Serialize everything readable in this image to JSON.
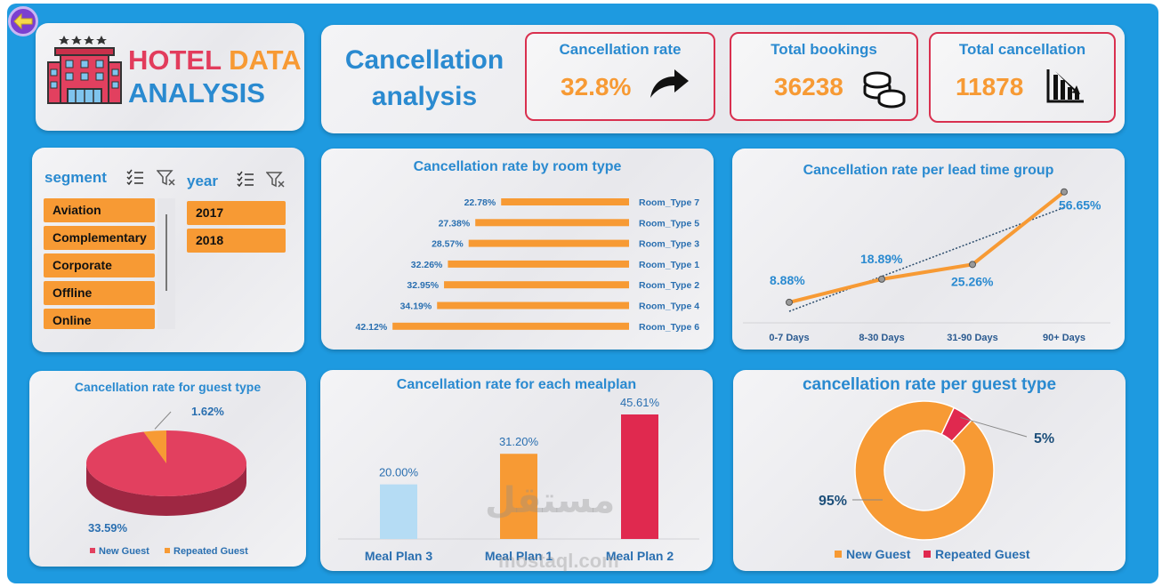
{
  "header": {
    "title_part1": "HOTEL",
    "title_part2": "DATA",
    "title_line2": "ANALYSIS",
    "section_title": "Cancellation analysis"
  },
  "kpis": [
    {
      "label": "Cancellation rate",
      "value": "32.8%",
      "icon": "arrow-turn-right-icon"
    },
    {
      "label": "Total bookings",
      "value": "36238",
      "icon": "coins-icon"
    },
    {
      "label": "Total cancellation",
      "value": "11878",
      "icon": "bar-chart-decrease-icon"
    }
  ],
  "slicers": {
    "segment": {
      "title": "segment",
      "items": [
        "Aviation",
        "Complementary",
        "Corporate",
        "Offline",
        "Online"
      ]
    },
    "year": {
      "title": "year",
      "items": [
        "2017",
        "2018"
      ]
    }
  },
  "colors": {
    "frame": "#1e9ae0",
    "orange": "#f79a34",
    "red": "#d9304f",
    "blue_text": "#2a8ad0",
    "light_blue": "#b5dcf4"
  },
  "chart_data": [
    {
      "id": "room_type",
      "type": "bar",
      "orientation": "horizontal",
      "title": "Cancellation rate by room type",
      "categories": [
        "Room_Type 7",
        "Room_Type 5",
        "Room_Type 3",
        "Room_Type 1",
        "Room_Type 2",
        "Room_Type 4",
        "Room_Type 6"
      ],
      "values": [
        22.78,
        27.38,
        28.57,
        32.26,
        32.95,
        34.19,
        42.12
      ],
      "labels": [
        "22.78%",
        "27.38%",
        "28.57%",
        "32.26%",
        "32.95%",
        "34.19%",
        "42.12%"
      ],
      "xlim": [
        0,
        45
      ]
    },
    {
      "id": "lead_time",
      "type": "line",
      "title": "Cancellation rate per lead time group",
      "categories": [
        "0-7 Days",
        "8-30 Days",
        "31-90 Days",
        "90+ Days"
      ],
      "values": [
        8.88,
        18.89,
        25.26,
        56.65
      ],
      "labels": [
        "8.88%",
        "18.89%",
        "25.26%",
        "56.65%"
      ],
      "trendline": "linear",
      "ylim": [
        0,
        60
      ]
    },
    {
      "id": "guest_pie",
      "type": "pie",
      "title": "Cancellation rate for guest type",
      "categories": [
        "New Guest",
        "Repeated Guest"
      ],
      "values": [
        33.59,
        1.62
      ],
      "labels": [
        "33.59%",
        "1.62%"
      ],
      "colors": [
        "#e2405f",
        "#f79a34"
      ],
      "legend": "bottom"
    },
    {
      "id": "mealplan",
      "type": "bar",
      "title": "Cancellation rate for each mealplan",
      "categories": [
        "Meal Plan 3",
        "Meal Plan 1",
        "Meal Plan 2"
      ],
      "values": [
        20.0,
        31.2,
        45.61
      ],
      "labels": [
        "20.00%",
        "31.20%",
        "45.61%"
      ],
      "colors": [
        "#b5dcf4",
        "#f79a34",
        "#e0294f"
      ],
      "ylim": [
        0,
        50
      ]
    },
    {
      "id": "guest_donut",
      "type": "pie",
      "style": "donut",
      "title": "cancellation rate per guest type",
      "categories": [
        "New Guest",
        "Repeated Guest"
      ],
      "values": [
        95,
        5
      ],
      "labels": [
        "95%",
        "5%"
      ],
      "colors": [
        "#f79a34",
        "#e0294f"
      ],
      "legend": "bottom"
    }
  ],
  "watermark": {
    "line1": "مستقل",
    "line2": "mostaql.com"
  }
}
